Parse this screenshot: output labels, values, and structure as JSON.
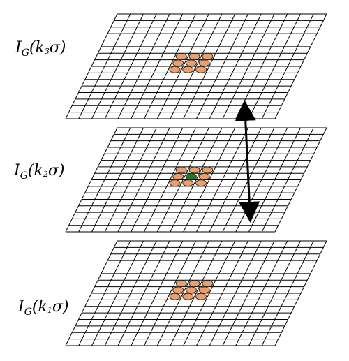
{
  "labels": {
    "layer_top": {
      "base": "I",
      "sub": "G",
      "open": "(",
      "k": "k",
      "index": "3",
      "sigma": "σ",
      "close": ")"
    },
    "layer_middle": {
      "base": "I",
      "sub": "G",
      "open": "(",
      "k": "k",
      "index": "2",
      "sigma": "σ",
      "close": ")"
    },
    "layer_bottom": {
      "base": "I",
      "sub": "G",
      "open": "(",
      "k": "k",
      "index": "1",
      "sigma": "σ",
      "close": ")"
    }
  },
  "grid": {
    "rows": 16,
    "cols": 16
  },
  "neighbor_marks": {
    "per_layer_top": 9,
    "per_layer_middle": 8,
    "per_layer_bottom": 9
  },
  "colors": {
    "grid_line": "#000000",
    "neighbor_fill": "#e8a070",
    "neighbor_stroke": "#3a2a1a",
    "center_fill": "#1e7a2e",
    "arrow": "#000000",
    "background": "#ffffff"
  }
}
